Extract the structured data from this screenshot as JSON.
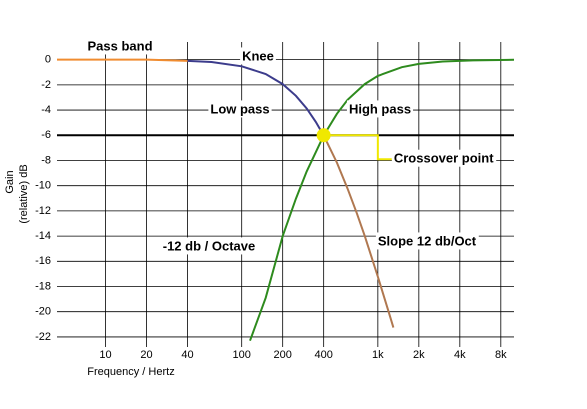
{
  "chart_data": {
    "type": "line",
    "xlabel": "Frequency / Hertz",
    "ylabel": [
      "Gain",
      "(relative)   dB"
    ],
    "log_x": true,
    "grid": true,
    "xlim": [
      4.4,
      10000
    ],
    "ylim": [
      -22.8,
      1.4
    ],
    "xticks": [
      10,
      20,
      40,
      100,
      200,
      400,
      {
        "value": 1000,
        "label": "1k"
      },
      {
        "value": 2000,
        "label": "2k"
      },
      {
        "value": 4000,
        "label": "4k"
      },
      {
        "value": 8000,
        "label": "8k"
      }
    ],
    "yticks": [
      0,
      -2,
      -4,
      -6,
      -8,
      -10,
      -12,
      -14,
      -16,
      -18,
      -20,
      -22
    ],
    "series": [
      {
        "name": "Pass band",
        "color": "#f08c30",
        "x": [
          4.4,
          10,
          20,
          40
        ],
        "values": [
          0,
          0,
          0,
          -0.1
        ]
      },
      {
        "name": "Knee",
        "color": "#3c3c8c",
        "x": [
          40,
          60,
          100,
          150,
          200,
          250,
          300,
          350,
          400
        ],
        "values": [
          -0.1,
          -0.19,
          -0.53,
          -1.14,
          -1.94,
          -2.87,
          -3.88,
          -4.94,
          -6.02
        ]
      },
      {
        "name": "Slope 12 db/Oct",
        "color": "#b07850",
        "x": [
          400,
          500,
          600,
          700,
          800,
          1000,
          1200,
          1300
        ],
        "values": [
          -6.02,
          -8.17,
          -10.24,
          -12.18,
          -13.98,
          -17.21,
          -20,
          -21.26
        ]
      },
      {
        "name": "High pass",
        "color": "#2e8b1e",
        "x": [
          115,
          150,
          200,
          250,
          300,
          400,
          500,
          600,
          800,
          1000,
          1500,
          2000,
          3000,
          5000,
          10000
        ],
        "values": [
          -22.3,
          -18.9,
          -14,
          -11.03,
          -8.87,
          -6.02,
          -4.3,
          -3.19,
          -1.94,
          -1.29,
          -0.6,
          -0.34,
          -0.15,
          -0.06,
          -0.01
        ]
      }
    ],
    "annotations": [
      {
        "text": "Low pass",
        "color": "#000000"
      },
      {
        "text": "-12 db / Octave",
        "color": "#2e8b1e"
      }
    ],
    "crossover": {
      "label": "Crossover point",
      "x": 400,
      "y": -6,
      "color": "#f0e800"
    }
  }
}
